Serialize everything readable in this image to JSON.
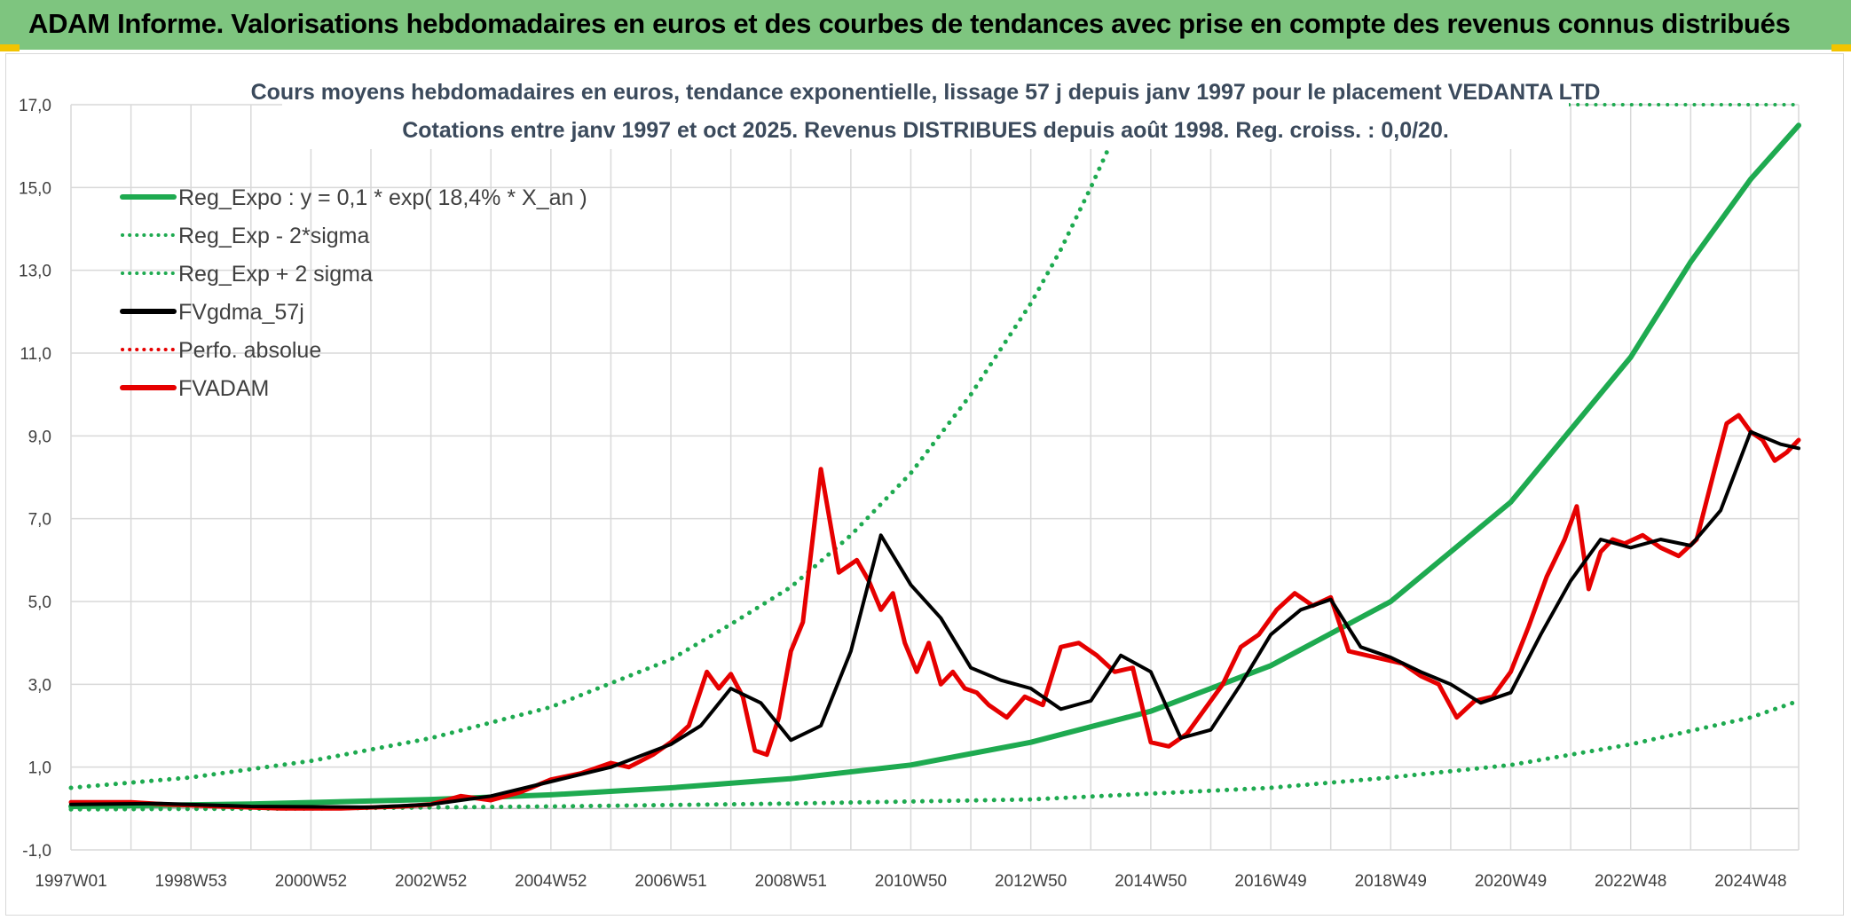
{
  "banner": {
    "title": "ADAM Informe. Valorisations hebdomadaires en euros et des courbes de tendances avec prise en compte des revenus connus distribués"
  },
  "colors": {
    "banner": "#7ec57f",
    "trend": "#1eaa50",
    "adam": "#e60000",
    "smooth": "#000000",
    "grid": "#d9d9d9"
  },
  "chart_data": {
    "type": "line",
    "title_line1": "Cours moyens hebdomadaires en euros, tendance exponentielle, lissage 57 j depuis janv 1997 pour le placement VEDANTA LTD",
    "title_line2": "Cotations entre janv 1997 et oct 2025. Revenus DISTRIBUES depuis août 1998. Reg. croiss. : 0,0/20.",
    "ylim": [
      -1,
      17
    ],
    "xlim": [
      1997.0,
      2025.8
    ],
    "y_ticks": [
      "-1,0",
      "1,0",
      "3,0",
      "5,0",
      "7,0",
      "9,0",
      "11,0",
      "13,0",
      "15,0",
      "17,0"
    ],
    "x_ticks": [
      {
        "label": "1997W01",
        "t": 1997.0
      },
      {
        "label": "1998W53",
        "t": 1999.0
      },
      {
        "label": "2000W52",
        "t": 2001.0
      },
      {
        "label": "2002W52",
        "t": 2003.0
      },
      {
        "label": "2004W52",
        "t": 2005.0
      },
      {
        "label": "2006W51",
        "t": 2007.0
      },
      {
        "label": "2008W51",
        "t": 2009.0
      },
      {
        "label": "2010W50",
        "t": 2011.0
      },
      {
        "label": "2012W50",
        "t": 2013.0
      },
      {
        "label": "2014W50",
        "t": 2015.0
      },
      {
        "label": "2016W49",
        "t": 2017.0
      },
      {
        "label": "2018W49",
        "t": 2019.0
      },
      {
        "label": "2020W49",
        "t": 2021.0
      },
      {
        "label": "2022W48",
        "t": 2023.0
      },
      {
        "label": "2024W48",
        "t": 2025.0
      }
    ],
    "legend": [
      {
        "key": "reg",
        "label": "Reg_Expo : y = 0,1 * exp( 18,4% *  X_an )",
        "color": "#1eaa50",
        "style": "solid"
      },
      {
        "key": "lower",
        "label": "Reg_Exp - 2*sigma",
        "color": "#1eaa50",
        "style": "dotted"
      },
      {
        "key": "upper",
        "label": "Reg_Exp + 2 sigma",
        "color": "#1eaa50",
        "style": "dotted"
      },
      {
        "key": "smooth",
        "label": "FVgdma_57j",
        "color": "#000000",
        "style": "solid"
      },
      {
        "key": "perfo",
        "label": "Perfo. absolue",
        "color": "#e60000",
        "style": "dotted"
      },
      {
        "key": "adam",
        "label": "FVADAM",
        "color": "#e60000",
        "style": "solid"
      }
    ],
    "series": [
      {
        "name": "Reg_Expo",
        "x": [
          1997.0,
          2000.0,
          2003.0,
          2005.0,
          2007.0,
          2009.0,
          2011.0,
          2013.0,
          2015.0,
          2017.0,
          2019.0,
          2021.0,
          2023.0,
          2024.0,
          2025.0,
          2025.8
        ],
        "values": [
          0.05,
          0.11,
          0.22,
          0.33,
          0.5,
          0.72,
          1.05,
          1.6,
          2.35,
          3.45,
          5.0,
          7.4,
          10.9,
          13.2,
          15.2,
          16.5
        ]
      },
      {
        "name": "Reg_Exp - 2*sigma",
        "x": [
          1997.0,
          2001.0,
          2005.0,
          2009.0,
          2013.0,
          2017.0,
          2019.0,
          2021.0,
          2023.0,
          2025.0,
          2025.8
        ],
        "values": [
          -0.02,
          0.0,
          0.05,
          0.12,
          0.22,
          0.5,
          0.75,
          1.05,
          1.55,
          2.2,
          2.6
        ]
      },
      {
        "name": "Reg_Exp + 2 sigma",
        "x": [
          1997.0,
          1999.0,
          2001.0,
          2003.0,
          2005.0,
          2007.0,
          2008.0,
          2009.0,
          2010.0,
          2011.0,
          2012.0,
          2013.0,
          2013.5,
          2014.0,
          2014.5
        ],
        "values": [
          0.5,
          0.75,
          1.15,
          1.7,
          2.45,
          3.6,
          4.45,
          5.35,
          6.6,
          8.1,
          10.0,
          12.2,
          13.5,
          15.0,
          16.6
        ]
      },
      {
        "name": "FVgdma_57j",
        "x": [
          1997.0,
          1998.5,
          2000.0,
          2002.0,
          2003.0,
          2004.0,
          2005.0,
          2006.0,
          2007.0,
          2007.5,
          2008.0,
          2008.5,
          2009.0,
          2009.5,
          2010.0,
          2010.5,
          2011.0,
          2011.5,
          2012.0,
          2012.5,
          2013.0,
          2013.5,
          2014.0,
          2014.5,
          2015.0,
          2015.5,
          2016.0,
          2016.5,
          2017.0,
          2017.5,
          2018.0,
          2018.5,
          2019.0,
          2019.5,
          2020.0,
          2020.5,
          2021.0,
          2021.5,
          2022.0,
          2022.5,
          2023.0,
          2023.5,
          2024.0,
          2024.5,
          2025.0,
          2025.5,
          2025.8
        ],
        "values": [
          0.1,
          0.12,
          0.05,
          0.03,
          0.1,
          0.3,
          0.65,
          1.0,
          1.55,
          2.0,
          2.9,
          2.55,
          1.65,
          2.0,
          3.8,
          6.6,
          5.4,
          4.6,
          3.4,
          3.1,
          2.9,
          2.4,
          2.6,
          3.7,
          3.3,
          1.7,
          1.9,
          3.0,
          4.2,
          4.8,
          5.05,
          3.9,
          3.65,
          3.3,
          3.0,
          2.55,
          2.8,
          4.2,
          5.5,
          6.5,
          6.3,
          6.5,
          6.35,
          7.2,
          9.1,
          8.8,
          8.7
        ]
      },
      {
        "name": "FVADAM",
        "x": [
          1997.0,
          1998.0,
          1998.6,
          1999.5,
          2000.5,
          2001.5,
          2002.5,
          2003.0,
          2003.5,
          2004.0,
          2004.5,
          2005.0,
          2005.5,
          2006.0,
          2006.3,
          2006.7,
          2007.0,
          2007.3,
          2007.6,
          2007.8,
          2008.0,
          2008.2,
          2008.4,
          2008.6,
          2008.8,
          2009.0,
          2009.2,
          2009.5,
          2009.8,
          2010.1,
          2010.3,
          2010.5,
          2010.7,
          2010.9,
          2011.1,
          2011.3,
          2011.5,
          2011.7,
          2011.9,
          2012.1,
          2012.3,
          2012.6,
          2012.9,
          2013.2,
          2013.5,
          2013.8,
          2014.1,
          2014.4,
          2014.7,
          2015.0,
          2015.3,
          2015.6,
          2015.9,
          2016.2,
          2016.5,
          2016.8,
          2017.1,
          2017.4,
          2017.7,
          2018.0,
          2018.3,
          2018.6,
          2018.9,
          2019.2,
          2019.5,
          2019.8,
          2020.1,
          2020.4,
          2020.7,
          2021.0,
          2021.3,
          2021.6,
          2021.9,
          2022.1,
          2022.3,
          2022.5,
          2022.7,
          2022.9,
          2023.2,
          2023.5,
          2023.8,
          2024.1,
          2024.4,
          2024.6,
          2024.8,
          2025.0,
          2025.2,
          2025.4,
          2025.6,
          2025.8
        ],
        "values": [
          0.15,
          0.15,
          0.1,
          0.05,
          0.0,
          0.0,
          0.05,
          0.1,
          0.3,
          0.2,
          0.4,
          0.7,
          0.85,
          1.1,
          1.0,
          1.3,
          1.6,
          2.0,
          3.3,
          2.9,
          3.25,
          2.7,
          1.4,
          1.3,
          2.2,
          3.8,
          4.5,
          8.2,
          5.7,
          6.0,
          5.5,
          4.8,
          5.2,
          4.0,
          3.3,
          4.0,
          3.0,
          3.3,
          2.9,
          2.8,
          2.5,
          2.2,
          2.7,
          2.5,
          3.9,
          4.0,
          3.7,
          3.3,
          3.4,
          1.6,
          1.5,
          1.8,
          2.4,
          3.0,
          3.9,
          4.2,
          4.8,
          5.2,
          4.9,
          5.1,
          3.8,
          3.7,
          3.6,
          3.5,
          3.2,
          3.0,
          2.2,
          2.6,
          2.7,
          3.3,
          4.4,
          5.6,
          6.5,
          7.3,
          5.3,
          6.2,
          6.5,
          6.4,
          6.6,
          6.3,
          6.1,
          6.5,
          8.2,
          9.3,
          9.5,
          9.1,
          8.9,
          8.4,
          8.6,
          8.9
        ]
      }
    ]
  }
}
